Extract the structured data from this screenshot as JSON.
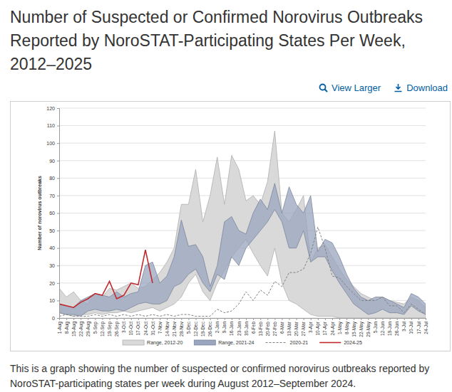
{
  "chart_data": {
    "type": "line",
    "title": "Number of Suspected or Confirmed Norovirus Outbreaks Reported by NoroSTAT-Participating States Per Week, 2012–2025",
    "y_label": "Number of norovirus outbreaks",
    "categories": [
      "1-Aug",
      "8-Aug",
      "15-Aug",
      "22-Aug",
      "29-Aug",
      "5-Sep",
      "12-Sep",
      "19-Sep",
      "26-Sep",
      "3-Oct",
      "10-Oct",
      "17-Oct",
      "24-Oct",
      "31-Oct",
      "7-Nov",
      "14-Nov",
      "21-Nov",
      "28-Nov",
      "5-Dec",
      "12-Dec",
      "19-Dec",
      "26-Dec",
      "2-Jan",
      "9-Jan",
      "16-Jan",
      "23-Jan",
      "30-Jan",
      "6-Feb",
      "13-Feb",
      "20-Feb",
      "27-Feb",
      "6-Mar",
      "13-Mar",
      "20-Mar",
      "27-Mar",
      "3-Apr",
      "10-Apr",
      "17-Apr",
      "24-Apr",
      "1-May",
      "8-May",
      "15-May",
      "22-May",
      "29-May",
      "5-Jun",
      "12-Jun",
      "19-Jun",
      "26-Jun",
      "3-Jul",
      "10-Jul",
      "17-Jul",
      "24-Jul"
    ],
    "series": [
      {
        "name": "Range, 2012-20",
        "type": "area",
        "color": "#d9d9d9",
        "low": [
          3,
          2,
          1,
          2,
          2,
          3,
          2,
          3,
          3,
          4,
          3,
          4,
          5,
          6,
          4,
          6,
          8,
          12,
          20,
          25,
          15,
          10,
          20,
          27,
          35,
          40,
          45,
          37,
          30,
          24,
          40,
          20,
          10,
          8,
          5,
          2,
          1,
          1,
          1,
          0,
          0,
          0,
          0,
          0,
          0,
          0,
          0,
          0,
          0,
          0,
          0,
          0
        ],
        "high": [
          17,
          12,
          15,
          10,
          8,
          14,
          12,
          17,
          16,
          18,
          20,
          17,
          18,
          22,
          26,
          32,
          40,
          65,
          65,
          85,
          55,
          70,
          92,
          65,
          93,
          85,
          67,
          70,
          65,
          78,
          107,
          60,
          55,
          62,
          70,
          32,
          40,
          42,
          35,
          28,
          22,
          18,
          14,
          12,
          10,
          12,
          10,
          9,
          8,
          12,
          10,
          6
        ]
      },
      {
        "name": "Range, 2021-24",
        "type": "area",
        "color": "#9aa6bf",
        "low": [
          3,
          2,
          2,
          1,
          4,
          5,
          4,
          4,
          5,
          4,
          6,
          8,
          9,
          8,
          8,
          10,
          18,
          20,
          25,
          28,
          20,
          15,
          25,
          22,
          35,
          30,
          40,
          45,
          50,
          55,
          62,
          55,
          40,
          40,
          50,
          32,
          35,
          35,
          27,
          20,
          14,
          8,
          5,
          2,
          3,
          5,
          3,
          3,
          2,
          7,
          4,
          2
        ],
        "high": [
          8,
          7,
          6,
          10,
          12,
          14,
          13,
          12,
          15,
          12,
          14,
          15,
          30,
          32,
          20,
          24,
          35,
          56,
          41,
          42,
          35,
          18,
          30,
          55,
          58,
          50,
          48,
          60,
          68,
          62,
          77,
          60,
          75,
          65,
          60,
          70,
          38,
          45,
          43,
          35,
          25,
          17,
          12,
          10,
          12,
          12,
          10,
          8,
          6,
          14,
          12,
          8
        ]
      },
      {
        "name": "2020-21",
        "type": "line",
        "color": "#7f7f7f",
        "line_style": "dashed",
        "values": [
          1,
          2,
          1,
          1,
          1,
          2,
          1,
          2,
          1,
          2,
          1,
          2,
          1,
          2,
          1,
          2,
          1,
          2,
          2,
          1,
          1,
          1,
          5,
          3,
          4,
          8,
          15,
          10,
          16,
          13,
          21,
          18,
          26,
          26,
          28,
          37,
          52,
          40,
          24,
          23,
          18,
          14,
          10,
          10,
          10,
          12,
          7,
          7,
          3,
          8,
          5,
          2
        ]
      },
      {
        "name": "2024-25",
        "type": "line",
        "color": "#c0282d",
        "line_style": "solid",
        "values": [
          8,
          7,
          6,
          9,
          11,
          14,
          13,
          21,
          11,
          13,
          20,
          19,
          39,
          20,
          null,
          null,
          null,
          null,
          null,
          null,
          null,
          null,
          null,
          null,
          null,
          null,
          null,
          null,
          null,
          null,
          null,
          null,
          null,
          null,
          null,
          null,
          null,
          null,
          null,
          null,
          null,
          null,
          null,
          null,
          null,
          null,
          null,
          null,
          null,
          null,
          null,
          null
        ]
      }
    ],
    "ylim": [
      0,
      120
    ],
    "yticks": [
      0,
      10,
      20,
      30,
      40,
      50,
      60,
      70,
      80,
      90,
      100,
      110,
      120
    ],
    "grid": true,
    "legend": "bottom"
  },
  "page": {
    "links": [
      "View Larger",
      "Download"
    ],
    "caption": "This is a graph showing the number of suspected or confirmed norovirus outbreaks reported by NoroSTAT-participating states per week during August 2012–September 2024."
  }
}
